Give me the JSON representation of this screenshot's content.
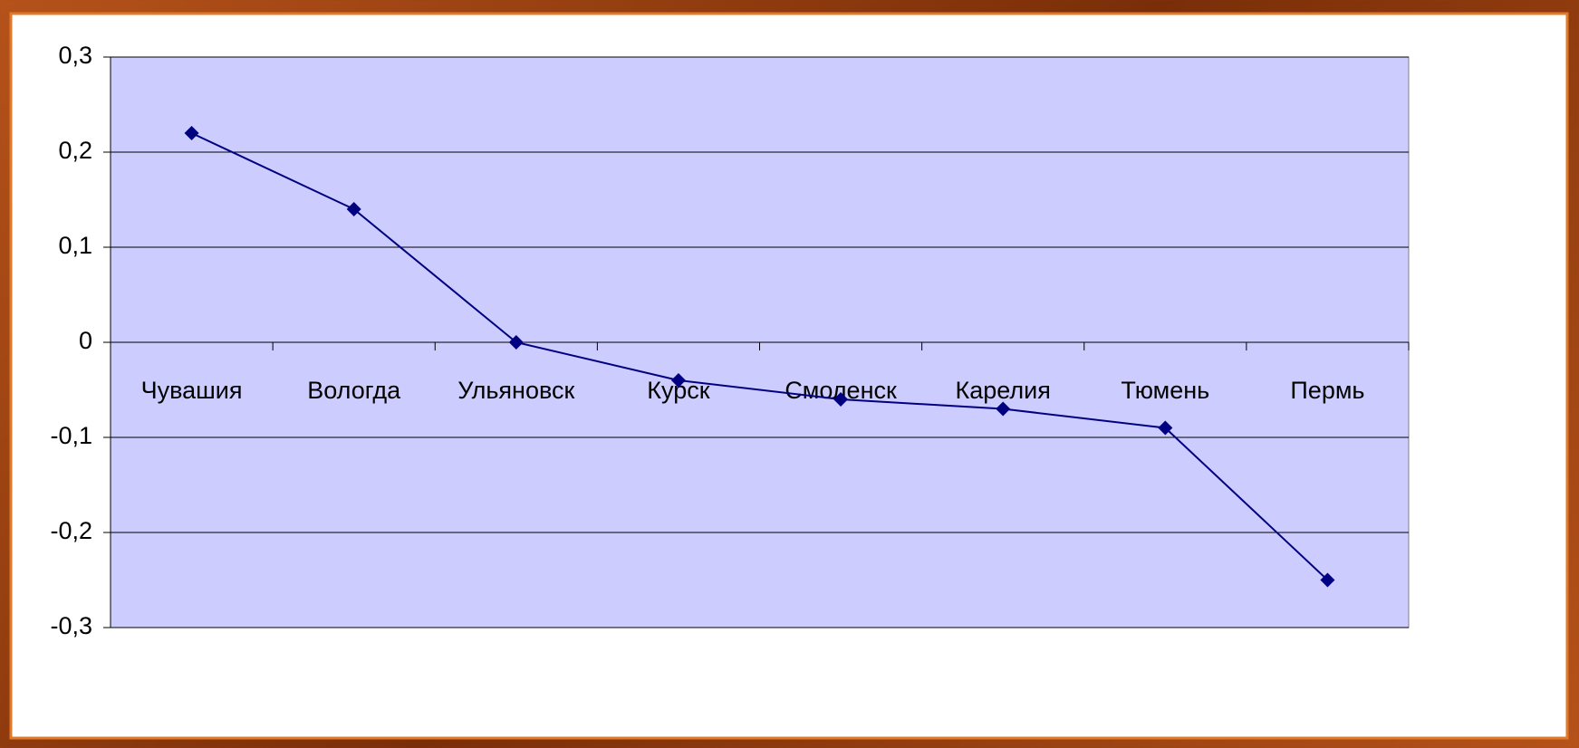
{
  "chart_data": {
    "type": "line",
    "categories": [
      "Чувашия",
      "Вологда",
      "Ульяновск",
      "Курск",
      "Смоленск",
      "Карелия",
      "Тюмень",
      "Пермь"
    ],
    "values": [
      0.22,
      0.14,
      0,
      -0.04,
      -0.06,
      -0.07,
      -0.09,
      -0.25
    ],
    "color": "#000080",
    "ylim": [
      -0.3,
      0.3
    ],
    "yticks": [
      {
        "value": -0.3,
        "label": "-0,3"
      },
      {
        "value": -0.2,
        "label": "-0,2"
      },
      {
        "value": -0.1,
        "label": "-0,1"
      },
      0,
      {
        "value": 0.1,
        "label": "0,1"
      },
      {
        "value": 0.2,
        "label": "0,2"
      },
      {
        "value": 0.3,
        "label": "0,3"
      }
    ],
    "grid": true
  }
}
